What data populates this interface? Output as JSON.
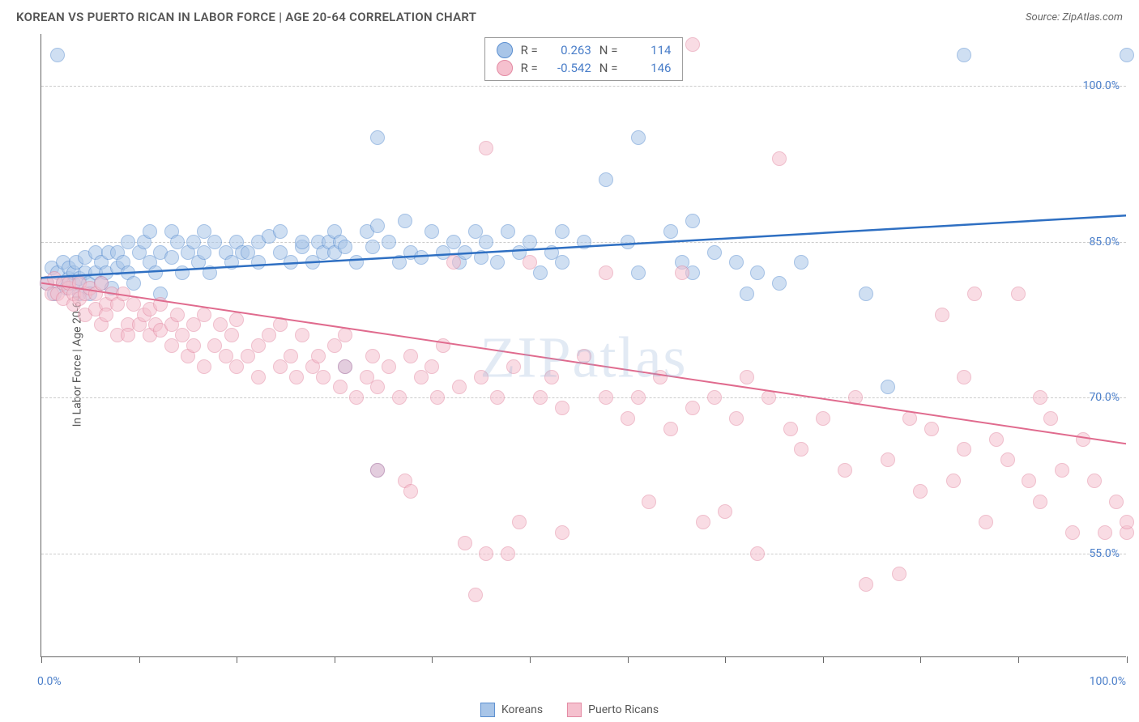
{
  "title": "KOREAN VS PUERTO RICAN IN LABOR FORCE | AGE 20-64 CORRELATION CHART",
  "source": "Source: ZipAtlas.com",
  "ylabel": "In Labor Force | Age 20-64",
  "watermark": "ZIPatlas",
  "chart": {
    "type": "scatter",
    "xlim": [
      0,
      100
    ],
    "ylim": [
      45,
      105
    ],
    "xlabel_start": "0.0%",
    "xlabel_end": "100.0%",
    "xtick_positions": [
      0,
      9,
      18,
      27,
      36,
      45,
      54,
      63,
      72,
      81,
      90,
      100
    ],
    "ytick_labels": [
      "55.0%",
      "70.0%",
      "85.0%",
      "100.0%"
    ],
    "ytick_positions": [
      55,
      70,
      85,
      100
    ],
    "grid_color": "#cccccc",
    "background_color": "#ffffff",
    "point_radius": 9,
    "point_opacity": 0.55
  },
  "series": [
    {
      "name": "Koreans",
      "color_fill": "#a8c5e8",
      "color_stroke": "#5b8fd0",
      "trend_color": "#2e6fc2",
      "trend_width": 2.5,
      "r": "0.263",
      "n": "114",
      "trend": {
        "x1": 0,
        "y1": 81.5,
        "x2": 100,
        "y2": 87.5
      },
      "points": [
        [
          0.5,
          81
        ],
        [
          1,
          82.5
        ],
        [
          1.2,
          80
        ],
        [
          1.5,
          103
        ],
        [
          1.5,
          82
        ],
        [
          2,
          81
        ],
        [
          2,
          83
        ],
        [
          2.3,
          80.5
        ],
        [
          2.5,
          81.5
        ],
        [
          2.5,
          82.5
        ],
        [
          3,
          81
        ],
        [
          3,
          82
        ],
        [
          3.2,
          83
        ],
        [
          3.5,
          80
        ],
        [
          3.5,
          81.5
        ],
        [
          4,
          82
        ],
        [
          4,
          83.5
        ],
        [
          4.3,
          81
        ],
        [
          4.5,
          80
        ],
        [
          5,
          82
        ],
        [
          5,
          84
        ],
        [
          5.5,
          81
        ],
        [
          5.5,
          83
        ],
        [
          6,
          82
        ],
        [
          6.2,
          84
        ],
        [
          6.5,
          80.5
        ],
        [
          7,
          84
        ],
        [
          7,
          82.5
        ],
        [
          7.5,
          83
        ],
        [
          8,
          85
        ],
        [
          8,
          82
        ],
        [
          8.5,
          81
        ],
        [
          9,
          84
        ],
        [
          9.5,
          85
        ],
        [
          10,
          83
        ],
        [
          10,
          86
        ],
        [
          10.5,
          82
        ],
        [
          11,
          80
        ],
        [
          11,
          84
        ],
        [
          12,
          86
        ],
        [
          12,
          83.5
        ],
        [
          12.5,
          85
        ],
        [
          13,
          82
        ],
        [
          13.5,
          84
        ],
        [
          14,
          85
        ],
        [
          14.5,
          83
        ],
        [
          15,
          86
        ],
        [
          15,
          84
        ],
        [
          15.5,
          82
        ],
        [
          16,
          85
        ],
        [
          17,
          84
        ],
        [
          17.5,
          83
        ],
        [
          18,
          85
        ],
        [
          18.5,
          84
        ],
        [
          19,
          84
        ],
        [
          20,
          85
        ],
        [
          20,
          83
        ],
        [
          21,
          85.5
        ],
        [
          22,
          84
        ],
        [
          22,
          86
        ],
        [
          23,
          83
        ],
        [
          24,
          84.5
        ],
        [
          24,
          85
        ],
        [
          25,
          83
        ],
        [
          25.5,
          85
        ],
        [
          26,
          84
        ],
        [
          26.5,
          85
        ],
        [
          27,
          84
        ],
        [
          27,
          86
        ],
        [
          27.5,
          85
        ],
        [
          28,
          84.5
        ],
        [
          28,
          73
        ],
        [
          29,
          83
        ],
        [
          30,
          86
        ],
        [
          30.5,
          84.5
        ],
        [
          31,
          86.5
        ],
        [
          31,
          63
        ],
        [
          31,
          95
        ],
        [
          32,
          85
        ],
        [
          33,
          83
        ],
        [
          33.5,
          87
        ],
        [
          34,
          84
        ],
        [
          35,
          83.5
        ],
        [
          36,
          86
        ],
        [
          37,
          84
        ],
        [
          38,
          85
        ],
        [
          38.5,
          83
        ],
        [
          39,
          84
        ],
        [
          40,
          86
        ],
        [
          40.5,
          83.5
        ],
        [
          41,
          85
        ],
        [
          42,
          83
        ],
        [
          43,
          86
        ],
        [
          44,
          84
        ],
        [
          45,
          85
        ],
        [
          46,
          82
        ],
        [
          47,
          84
        ],
        [
          48,
          86
        ],
        [
          48,
          83
        ],
        [
          50,
          85
        ],
        [
          52,
          91
        ],
        [
          54,
          85
        ],
        [
          55,
          82
        ],
        [
          55,
          95
        ],
        [
          58,
          86
        ],
        [
          59,
          83
        ],
        [
          60,
          87
        ],
        [
          60,
          82
        ],
        [
          62,
          84
        ],
        [
          64,
          83
        ],
        [
          65,
          80
        ],
        [
          66,
          82
        ],
        [
          68,
          81
        ],
        [
          70,
          83
        ],
        [
          76,
          80
        ],
        [
          78,
          71
        ],
        [
          85,
          103
        ],
        [
          100,
          103
        ]
      ]
    },
    {
      "name": "Puerto Ricans",
      "color_fill": "#f5c0ce",
      "color_stroke": "#e38aa3",
      "trend_color": "#e06b8e",
      "trend_width": 2,
      "r": "-0.542",
      "n": "146",
      "trend": {
        "x1": 0,
        "y1": 81,
        "x2": 100,
        "y2": 65.5
      },
      "points": [
        [
          0.5,
          81
        ],
        [
          1,
          80
        ],
        [
          1.2,
          81.5
        ],
        [
          1.5,
          80
        ],
        [
          2,
          81
        ],
        [
          2,
          79.5
        ],
        [
          2.5,
          80.5
        ],
        [
          2.5,
          81
        ],
        [
          3,
          79
        ],
        [
          3,
          80
        ],
        [
          3.5,
          81
        ],
        [
          3.5,
          79.5
        ],
        [
          4,
          80
        ],
        [
          4,
          78
        ],
        [
          4.5,
          80.5
        ],
        [
          5,
          78.5
        ],
        [
          5,
          80
        ],
        [
          5.5,
          77
        ],
        [
          5.5,
          81
        ],
        [
          6,
          79
        ],
        [
          6,
          78
        ],
        [
          6.5,
          80
        ],
        [
          7,
          76
        ],
        [
          7,
          79
        ],
        [
          7.5,
          80
        ],
        [
          8,
          77
        ],
        [
          8,
          76
        ],
        [
          8.5,
          79
        ],
        [
          9,
          77
        ],
        [
          9.5,
          78
        ],
        [
          10,
          76
        ],
        [
          10,
          78.5
        ],
        [
          10.5,
          77
        ],
        [
          11,
          76.5
        ],
        [
          11,
          79
        ],
        [
          12,
          77
        ],
        [
          12,
          75
        ],
        [
          12.5,
          78
        ],
        [
          13,
          76
        ],
        [
          13.5,
          74
        ],
        [
          14,
          77
        ],
        [
          14,
          75
        ],
        [
          15,
          78
        ],
        [
          15,
          73
        ],
        [
          16,
          75
        ],
        [
          16.5,
          77
        ],
        [
          17,
          74
        ],
        [
          17.5,
          76
        ],
        [
          18,
          73
        ],
        [
          18,
          77.5
        ],
        [
          19,
          74
        ],
        [
          20,
          75
        ],
        [
          20,
          72
        ],
        [
          21,
          76
        ],
        [
          22,
          73
        ],
        [
          22,
          77
        ],
        [
          23,
          74
        ],
        [
          23.5,
          72
        ],
        [
          24,
          76
        ],
        [
          25,
          73
        ],
        [
          25.5,
          74
        ],
        [
          26,
          72
        ],
        [
          27,
          75
        ],
        [
          27.5,
          71
        ],
        [
          28,
          73
        ],
        [
          28,
          76
        ],
        [
          29,
          70
        ],
        [
          30,
          72
        ],
        [
          30.5,
          74
        ],
        [
          31,
          71
        ],
        [
          31,
          63
        ],
        [
          32,
          73
        ],
        [
          33,
          70
        ],
        [
          33.5,
          62
        ],
        [
          34,
          74
        ],
        [
          34,
          61
        ],
        [
          35,
          72
        ],
        [
          36,
          73
        ],
        [
          36.5,
          70
        ],
        [
          37,
          75
        ],
        [
          38,
          83
        ],
        [
          38.5,
          71
        ],
        [
          39,
          56
        ],
        [
          40,
          51
        ],
        [
          40.5,
          72
        ],
        [
          41,
          55
        ],
        [
          41,
          94
        ],
        [
          42,
          70
        ],
        [
          43,
          55
        ],
        [
          43.5,
          73
        ],
        [
          44,
          58
        ],
        [
          45,
          83
        ],
        [
          46,
          70
        ],
        [
          47,
          72
        ],
        [
          48,
          69
        ],
        [
          48,
          57
        ],
        [
          50,
          74
        ],
        [
          52,
          70
        ],
        [
          52,
          82
        ],
        [
          54,
          68
        ],
        [
          55,
          70
        ],
        [
          56,
          60
        ],
        [
          57,
          72
        ],
        [
          58,
          67
        ],
        [
          59,
          82
        ],
        [
          60,
          69
        ],
        [
          60,
          104
        ],
        [
          61,
          58
        ],
        [
          62,
          70
        ],
        [
          63,
          59
        ],
        [
          64,
          68
        ],
        [
          65,
          72
        ],
        [
          66,
          55
        ],
        [
          67,
          70
        ],
        [
          68,
          93
        ],
        [
          69,
          67
        ],
        [
          70,
          65
        ],
        [
          72,
          68
        ],
        [
          74,
          63
        ],
        [
          75,
          70
        ],
        [
          76,
          52
        ],
        [
          78,
          64
        ],
        [
          79,
          53
        ],
        [
          80,
          68
        ],
        [
          81,
          61
        ],
        [
          82,
          67
        ],
        [
          83,
          78
        ],
        [
          84,
          62
        ],
        [
          85,
          72
        ],
        [
          85,
          65
        ],
        [
          86,
          80
        ],
        [
          87,
          58
        ],
        [
          88,
          66
        ],
        [
          89,
          64
        ],
        [
          90,
          80
        ],
        [
          91,
          62
        ],
        [
          92,
          70
        ],
        [
          92,
          60
        ],
        [
          93,
          68
        ],
        [
          94,
          63
        ],
        [
          95,
          57
        ],
        [
          96,
          66
        ],
        [
          97,
          62
        ],
        [
          98,
          57
        ],
        [
          99,
          60
        ],
        [
          100,
          57
        ],
        [
          100,
          58
        ]
      ]
    }
  ],
  "legend": {
    "items": [
      "Koreans",
      "Puerto Ricans"
    ]
  },
  "stats_labels": {
    "r": "R =",
    "n": "N ="
  }
}
